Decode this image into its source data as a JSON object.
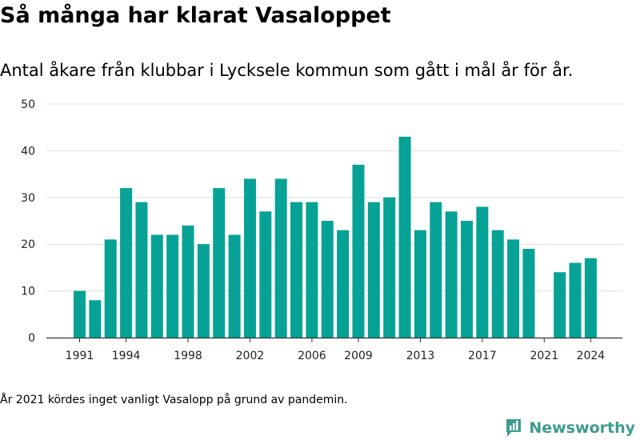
{
  "chart_data": {
    "type": "bar",
    "title": "Så många har klarat Vasaloppet",
    "subtitle": "Antal åkare från klubbar i Lycksele kommun som gått i mål år för år.",
    "categories": [
      1991,
      1992,
      1993,
      1994,
      1995,
      1996,
      1997,
      1998,
      1999,
      2000,
      2001,
      2002,
      2003,
      2004,
      2005,
      2006,
      2007,
      2008,
      2009,
      2010,
      2011,
      2012,
      2013,
      2014,
      2015,
      2016,
      2017,
      2018,
      2019,
      2020,
      2021,
      2022,
      2023,
      2024
    ],
    "values": [
      10,
      8,
      21,
      32,
      29,
      22,
      22,
      24,
      20,
      32,
      22,
      34,
      27,
      34,
      29,
      29,
      25,
      23,
      37,
      29,
      30,
      43,
      23,
      29,
      27,
      25,
      28,
      23,
      21,
      19,
      null,
      14,
      16,
      17
    ],
    "x_tick_labels": [
      "1991",
      "1994",
      "1998",
      "2002",
      "2006",
      "2009",
      "2013",
      "2017",
      "2021",
      "2024"
    ],
    "y_tick_labels": [
      "0",
      "10",
      "20",
      "30",
      "40",
      "50"
    ],
    "ylim": [
      0,
      50
    ],
    "xlabel": "",
    "ylabel": "",
    "grid": true,
    "bar_color": "#06a296",
    "note": "År 2021 kördes inget vanligt Vasalopp på grund av pandemin."
  },
  "brand": {
    "name": "Newsworthy",
    "icon": "bar-chart-logo-icon",
    "color": "#3e9c8f"
  }
}
